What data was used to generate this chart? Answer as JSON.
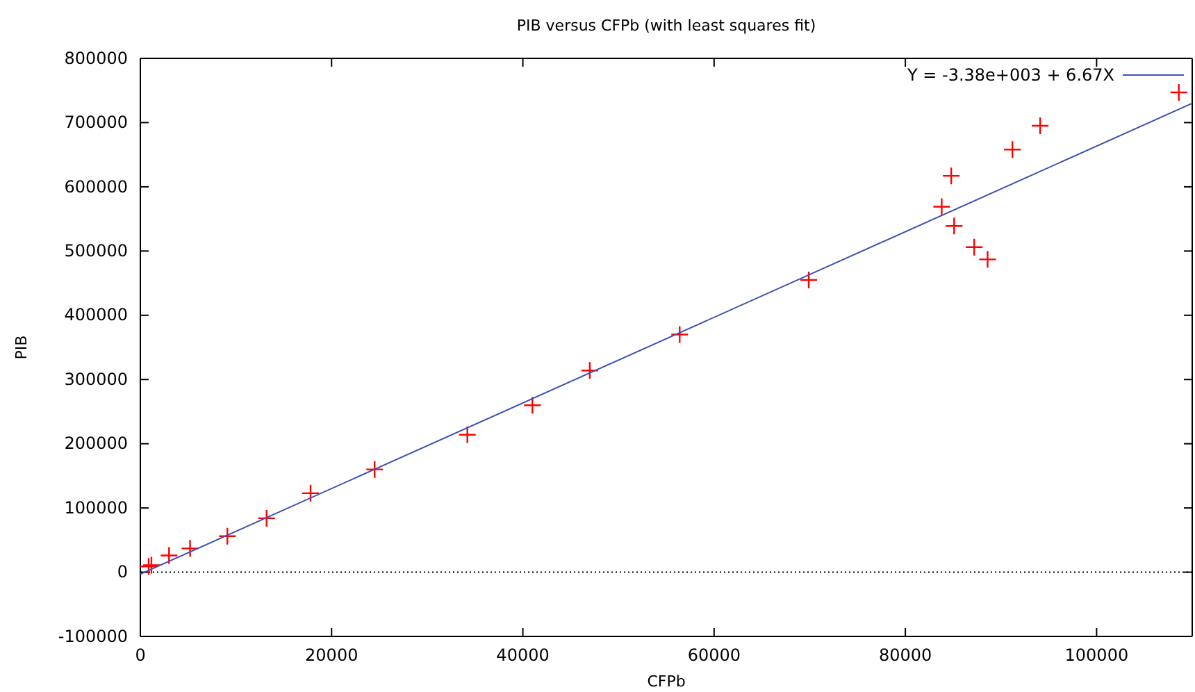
{
  "chart_data": {
    "type": "scatter",
    "title": "PIB versus CFPb (with least squares fit)",
    "xlabel": "CFPb",
    "ylabel": "PIB",
    "xlim": [
      0,
      110000
    ],
    "xticks": [
      0,
      20000,
      40000,
      60000,
      80000,
      100000
    ],
    "ylim": [
      -100000,
      800000
    ],
    "yticks": [
      -100000,
      0,
      100000,
      200000,
      300000,
      400000,
      500000,
      600000,
      700000,
      800000
    ],
    "grid": false,
    "legend": "top right",
    "marker": "cross",
    "ref_lines": [
      {
        "axis": "y",
        "value": 0,
        "line_style": "dotted",
        "color": "#000000"
      }
    ],
    "series": [
      {
        "color": "#ff0000",
        "x": [
          870,
          1160,
          3000,
          5200,
          9100,
          13200,
          17800,
          24500,
          34200,
          41000,
          47000,
          56400,
          69900,
          83800,
          84800,
          85100,
          87200,
          88600,
          91200,
          94100,
          108600
        ],
        "values": [
          9000,
          11000,
          26000,
          37000,
          56000,
          84000,
          123000,
          160000,
          214000,
          260000,
          314000,
          370000,
          455000,
          569000,
          617000,
          539000,
          506000,
          487000,
          658000,
          695000,
          747000
        ]
      },
      {
        "type": "line",
        "name": "Y = -3.38e+003 + 6.67X",
        "color": "#3f51b5",
        "x": [
          0,
          110000
        ],
        "values": [
          -3000,
          730000
        ],
        "line_style": "solid",
        "marker": "none"
      }
    ]
  }
}
